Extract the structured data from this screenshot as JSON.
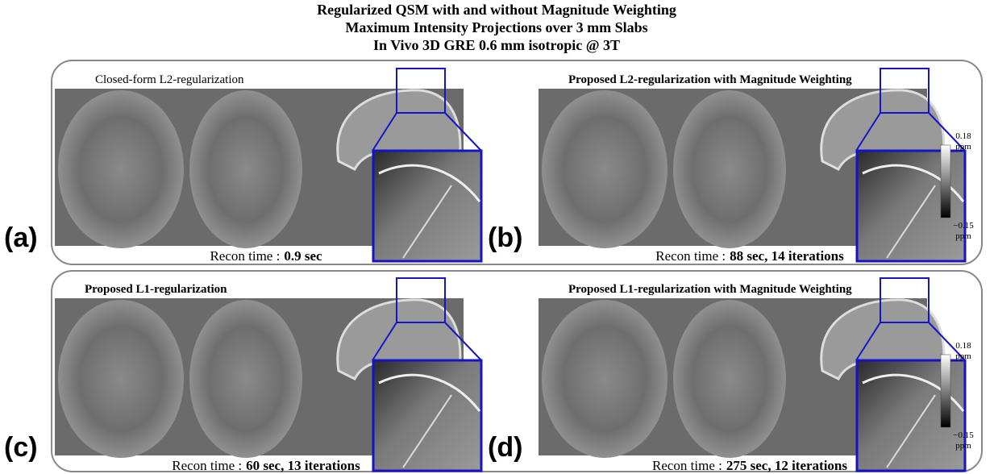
{
  "title": [
    "Regularized QSM with and without Magnitude Weighting",
    "Maximum Intensity Projections over 3 mm Slabs",
    "In Vivo 3D GRE 0.6 mm isotropic @ 3T"
  ],
  "panels": [
    {
      "label": "(a)",
      "title": "Closed-form L2-regularization",
      "recon_prefix": "Recon time :",
      "recon_value": "0.9 sec"
    },
    {
      "label": "(b)",
      "title": "Proposed L2-regularization with Magnitude Weighting",
      "recon_prefix": "Recon time :",
      "recon_value": "88 sec, 14 iterations"
    },
    {
      "label": "(c)",
      "title": "Proposed L1-regularization",
      "recon_prefix": "Recon time :",
      "recon_value": "60 sec, 13 iterations"
    },
    {
      "label": "(d)",
      "title": "Proposed L1-regularization with Magnitude Weighting",
      "recon_prefix": "Recon time :",
      "recon_value": "275 sec, 12 iterations"
    }
  ],
  "colorbar": {
    "max": "0.18",
    "min": "−0.15",
    "unit": "ppm"
  }
}
